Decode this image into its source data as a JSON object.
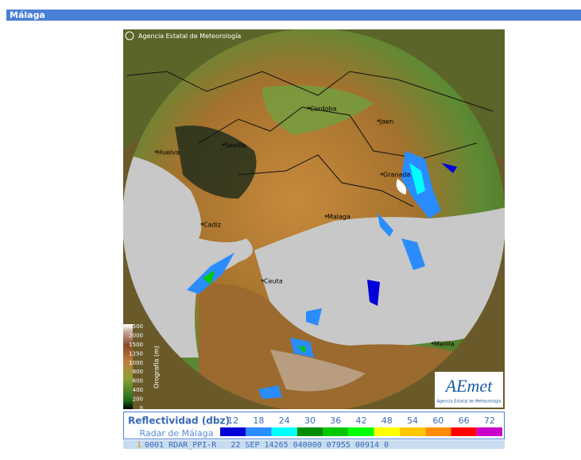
{
  "header": {
    "title": "Málaga"
  },
  "map": {
    "credit": "Agencia Estatal de Meteorología",
    "cities": [
      "Cordoba",
      "Jaen",
      "Huelva",
      "Sevilla",
      "Granada",
      "Malaga",
      "Cadiz",
      "Ceuta",
      "Melilla"
    ],
    "orography": {
      "title": "Orografía (m)",
      "levels": [
        ">2500",
        2000,
        1500,
        1250,
        1000,
        800,
        600,
        400,
        200,
        0
      ]
    },
    "logo": {
      "name": "AEmet",
      "subtitle": "Agencia Estatal de Meteorología"
    }
  },
  "legend": {
    "title": "Reflectividad (dbz)",
    "subtitle": "Radar de Málaga",
    "levels": [
      {
        "value": 12,
        "color": "#0000d8"
      },
      {
        "value": 18,
        "color": "#2a8cff"
      },
      {
        "value": 24,
        "color": "#00ffff"
      },
      {
        "value": 30,
        "color": "#008c00"
      },
      {
        "value": 36,
        "color": "#00c800"
      },
      {
        "value": 42,
        "color": "#00ff00"
      },
      {
        "value": 48,
        "color": "#ffff00"
      },
      {
        "value": 54,
        "color": "#ffc800"
      },
      {
        "value": 60,
        "color": "#ff8c00"
      },
      {
        "value": 66,
        "color": "#ff0000"
      },
      {
        "value": 72,
        "color": "#c800c8"
      }
    ]
  },
  "status": {
    "index": "1",
    "text": "0001 RDAR_PPI-R   22 SEP 14265 040000 07955 00914 0"
  }
}
